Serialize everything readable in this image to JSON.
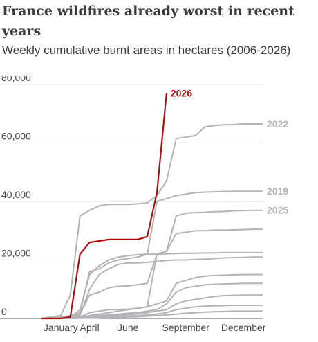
{
  "chart_data": {
    "type": "line",
    "title": "France wildfires already worst in recent years",
    "subtitle": "Weekly cumulative burnt areas in hectares (2006-2026)",
    "categories": [
      null,
      null,
      "January",
      null,
      null,
      "April",
      null,
      null,
      null,
      "June",
      null,
      null,
      null,
      null,
      null,
      "September",
      null,
      null,
      null,
      null,
      null,
      "December",
      null,
      null
    ],
    "ylim": [
      0,
      80000
    ],
    "yticks": [
      0,
      {
        "value": 20000,
        "label": "20,000"
      },
      {
        "value": 40000,
        "label": "40,000"
      },
      {
        "value": 60000,
        "label": "60,000"
      },
      {
        "value": 80000,
        "label": "80,000"
      }
    ],
    "grid": true,
    "series": [
      {
        "color": "#b3b3b8",
        "values": [
          0,
          0,
          200,
          500,
          1500,
          8000,
          9000,
          10500,
          11000,
          11200,
          11500,
          12000,
          22000,
          23000,
          29000,
          29500,
          30000,
          30000,
          30200,
          30200,
          30300,
          30400,
          30500,
          30500
        ]
      },
      {
        "color": "#b3b3b8",
        "values": [
          0,
          0,
          100,
          300,
          3000,
          15000,
          18000,
          20000,
          21000,
          21500,
          21800,
          22000,
          22000,
          22100,
          22200,
          22300,
          22300,
          22400,
          22400,
          22500,
          22500,
          22500,
          22500,
          22500
        ]
      },
      {
        "color": "#b3b3b8",
        "values": [
          0,
          0,
          0,
          200,
          1000,
          10000,
          15000,
          17000,
          18500,
          19000,
          19000,
          19200,
          19500,
          19800,
          20000,
          20000,
          20200,
          20300,
          20500,
          20700,
          20800,
          20900,
          21000,
          21000
        ]
      },
      {
        "color": "#b3b3b8",
        "values": [
          0,
          0,
          0,
          100,
          500,
          2000,
          2500,
          3000,
          3000,
          3200,
          3500,
          4000,
          5000,
          6000,
          12000,
          13000,
          14000,
          14500,
          14700,
          14800,
          14900,
          15000,
          15000,
          15000
        ]
      },
      {
        "color": "#b3b3b8",
        "values": [
          0,
          0,
          100,
          200,
          400,
          800,
          1000,
          1200,
          1500,
          1800,
          2000,
          2500,
          3000,
          5000,
          9000,
          10500,
          11000,
          11500,
          11700,
          11800,
          11900,
          12000,
          12000,
          12000
        ]
      },
      {
        "color": "#b3b3b8",
        "values": [
          0,
          0,
          0,
          100,
          200,
          500,
          800,
          1000,
          1200,
          1400,
          1600,
          2000,
          2500,
          3000,
          5000,
          6000,
          6500,
          7000,
          7500,
          7800,
          7900,
          8000,
          8000,
          8000
        ]
      },
      {
        "color": "#b3b3b8",
        "values": [
          0,
          0,
          0,
          0,
          100,
          300,
          500,
          700,
          800,
          900,
          1000,
          1200,
          1500,
          2000,
          3000,
          3500,
          4000,
          4200,
          4300,
          4400,
          4500,
          4500,
          4500,
          4500
        ]
      },
      {
        "color": "#b3b3b8",
        "values": [
          0,
          0,
          0,
          0,
          50,
          100,
          200,
          300,
          400,
          500,
          600,
          800,
          1000,
          1200,
          1500,
          1800,
          2000,
          2200,
          2300,
          2400,
          2500,
          2500,
          2500,
          2500
        ]
      },
      {
        "name": "2019",
        "color": "#b3b3b8",
        "values": [
          0,
          0,
          500,
          1000,
          2000,
          16000,
          17000,
          19000,
          20000,
          20500,
          21000,
          22000,
          40000,
          41000,
          42000,
          42500,
          43000,
          43200,
          43300,
          43400,
          43500,
          43500,
          43500,
          43500
        ]
      },
      {
        "name": "2025",
        "color": "#b3b3b8",
        "values": [
          0,
          0,
          0,
          200,
          500,
          1000,
          1500,
          2000,
          2500,
          3000,
          3500,
          4000,
          22000,
          23000,
          35000,
          36000,
          36200,
          36300,
          36500,
          36600,
          36800,
          36900,
          37000,
          37000
        ]
      },
      {
        "name": "2022",
        "color": "#b3b3b8",
        "values": [
          0,
          500,
          1000,
          8000,
          35000,
          37000,
          38500,
          39000,
          39000,
          39000,
          39200,
          39500,
          42000,
          47000,
          61500,
          62000,
          62500,
          65500,
          66000,
          66200,
          66300,
          66500,
          66500,
          66500
        ]
      },
      {
        "name": "2026",
        "color": "#b00f0f",
        "values": [
          0,
          0,
          0,
          500,
          22000,
          26000,
          26500,
          27000,
          27000,
          27000,
          27000,
          28000,
          43000,
          77000,
          null,
          null,
          null,
          null,
          null,
          null,
          null,
          null,
          null,
          null
        ]
      }
    ]
  }
}
